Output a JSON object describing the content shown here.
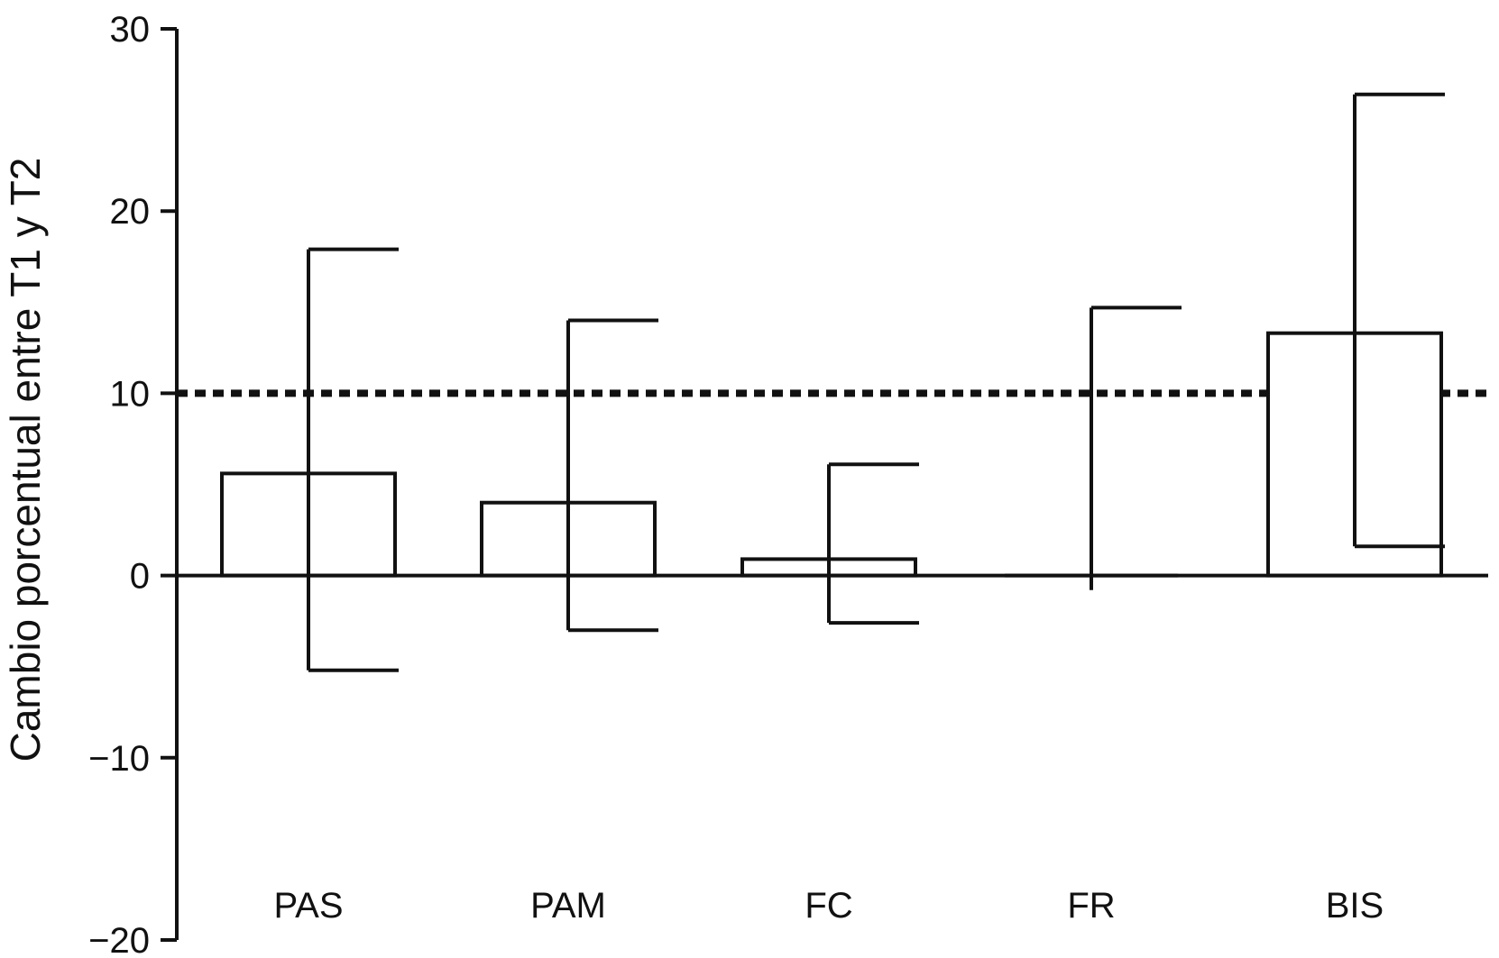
{
  "chart_data": {
    "type": "bar",
    "ylabel": "Cambio porcentual entre T1 y T2",
    "categories": [
      "PAS",
      "PAM",
      "FC",
      "FR",
      "BIS"
    ],
    "values": [
      5.6,
      4.0,
      0.9,
      0.0,
      13.3
    ],
    "error_low": [
      -5.2,
      -3.0,
      -2.6,
      -0.8,
      1.6
    ],
    "error_high": [
      17.9,
      14.0,
      6.1,
      14.7,
      26.4
    ],
    "ylim": [
      -20,
      30
    ],
    "yticks": [
      30,
      20,
      10,
      0,
      -10,
      -20
    ],
    "ytick_labels": [
      "30",
      "20",
      "10",
      "0",
      "−10",
      "−20"
    ],
    "reference_line": {
      "value": 10,
      "style": "dotted"
    },
    "grid": false,
    "colors": {
      "bar_fill": "#ffffff",
      "stroke": "#111111"
    }
  }
}
